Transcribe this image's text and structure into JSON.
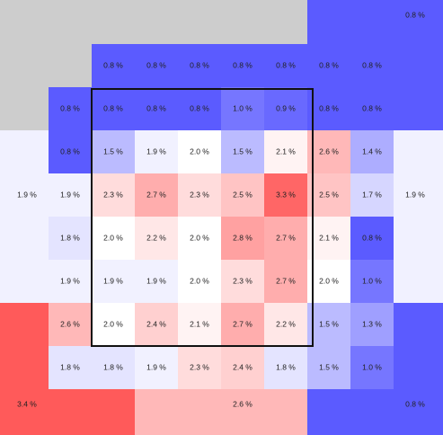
{
  "chart_data": {
    "type": "heatmap",
    "title": "",
    "unit_suffix": " %",
    "color_scale": {
      "min_color": "#5b5bff",
      "mid_color": "#ffffff",
      "max_color": "#ff5a5a",
      "min": 0.8,
      "mid": 2.0,
      "max": 3.4
    },
    "background_color": "#cdcdcd",
    "strike_zone": {
      "rows": [
        1,
        5
      ],
      "cols": [
        1,
        5
      ],
      "stroke": "#111111"
    },
    "outer_regions": [
      {
        "id": "top-right",
        "value": 0.8,
        "label": "0.8 %"
      },
      {
        "id": "left",
        "value": 1.9,
        "label": "1.9 %"
      },
      {
        "id": "right",
        "value": 1.9,
        "label": "1.9 %"
      },
      {
        "id": "bottom-left",
        "value": 3.4,
        "label": "3.4 %"
      },
      {
        "id": "bottom-center",
        "value": 2.6,
        "label": "2.6 %"
      },
      {
        "id": "bottom-right",
        "value": 0.8,
        "label": "0.8 %"
      }
    ],
    "grid_top_row": [
      0.8,
      0.8,
      0.8,
      0.8,
      0.8,
      0.8,
      0.8
    ],
    "grid": [
      [
        0.8,
        0.8,
        0.8,
        0.8,
        1.0,
        0.9,
        0.8,
        0.8
      ],
      [
        0.8,
        1.5,
        1.9,
        2.0,
        1.5,
        2.1,
        2.6,
        1.4
      ],
      [
        1.9,
        2.3,
        2.7,
        2.3,
        2.5,
        3.3,
        2.5,
        1.7
      ],
      [
        1.8,
        2.0,
        2.2,
        2.0,
        2.8,
        2.7,
        2.1,
        0.8
      ],
      [
        1.9,
        1.9,
        1.9,
        2.0,
        2.3,
        2.7,
        2.0,
        1.0
      ],
      [
        2.6,
        2.0,
        2.4,
        2.1,
        2.7,
        2.2,
        1.5,
        1.3
      ],
      [
        1.8,
        1.8,
        1.9,
        2.3,
        2.4,
        1.8,
        1.5,
        1.0
      ]
    ]
  }
}
